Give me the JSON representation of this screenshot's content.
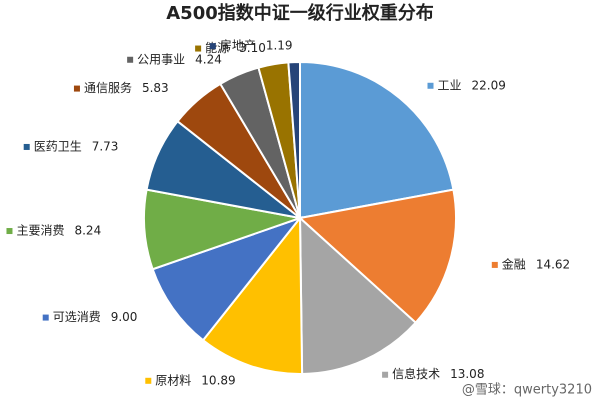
{
  "chart_data": {
    "type": "pie",
    "title": "A500指数中证一级行业权重分布",
    "categories": [
      "工业",
      "金融",
      "信息技术",
      "原材料",
      "可选消费",
      "主要消费",
      "医药卫生",
      "通信服务",
      "公用事业",
      "能源",
      "房地产"
    ],
    "values": [
      22.09,
      14.62,
      13.08,
      10.89,
      9.0,
      8.24,
      7.73,
      5.83,
      4.24,
      3.1,
      1.19
    ],
    "value_labels": [
      "22.09",
      "14.62",
      "13.08",
      "10.89",
      "9.00",
      "8.24",
      "7.73",
      "5.83",
      "4.24",
      "3.10",
      "1.19"
    ],
    "colors": [
      "#5b9bd5",
      "#ed7d31",
      "#a5a5a5",
      "#ffc000",
      "#4472c4",
      "#70ad47",
      "#255e91",
      "#9e480e",
      "#636363",
      "#997300",
      "#264478"
    ],
    "watermark": "@雪球：qwerty3210"
  }
}
